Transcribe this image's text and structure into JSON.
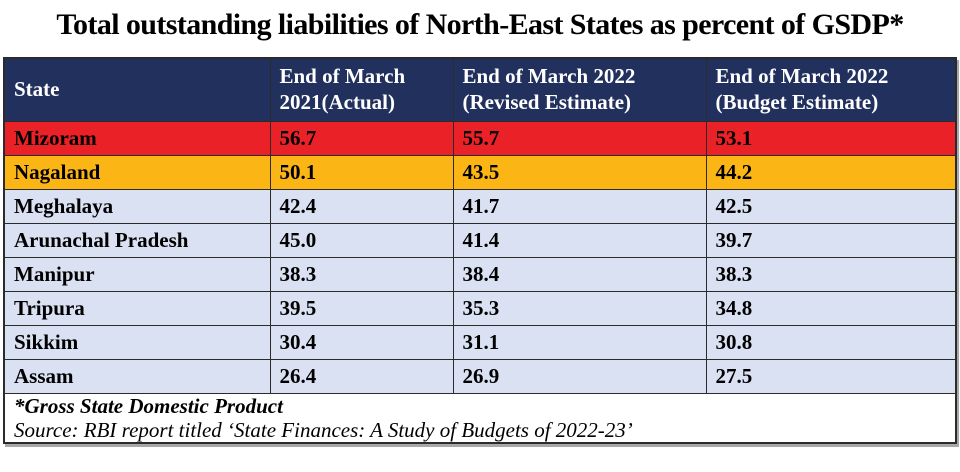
{
  "title": "Total outstanding liabilities of North-East States as percent of GSDP*",
  "colors": {
    "header_bg": "#22305e",
    "mizoram_row_bg": "#ea2127",
    "nagaland_row_bg": "#fbb615",
    "default_row_bg": "#d9e1f2",
    "title_text": "#000000",
    "header_text": "#ffffff"
  },
  "table": {
    "headers": [
      "State",
      "End of March 2021(Actual)",
      "End of March 2022 (Revised Estimate)",
      "End of March 2022 (Budget Estimate)"
    ],
    "rows": [
      {
        "state": "Mizoram",
        "values": [
          "56.7",
          "55.7",
          "53.1"
        ]
      },
      {
        "state": "Nagaland",
        "values": [
          "50.1",
          "43.5",
          "44.2"
        ]
      },
      {
        "state": "Meghalaya",
        "values": [
          "42.4",
          "41.7",
          "42.5"
        ]
      },
      {
        "state": "Arunachal Pradesh",
        "values": [
          "45.0",
          "41.4",
          "39.7"
        ]
      },
      {
        "state": "Manipur",
        "values": [
          "38.3",
          "38.4",
          "38.3"
        ]
      },
      {
        "state": "Tripura",
        "values": [
          "39.5",
          "35.3",
          "34.8"
        ]
      },
      {
        "state": "Sikkim",
        "values": [
          "30.4",
          "31.1",
          "30.8"
        ]
      },
      {
        "state": "Assam",
        "values": [
          "26.4",
          "26.9",
          "27.5"
        ]
      }
    ],
    "footnote": "*Gross State Domestic Product",
    "source": "Source: RBI report titled ‘State Finances: A Study of Budgets of 2022-23’"
  },
  "chart_data": {
    "type": "table",
    "title": "Total outstanding liabilities of North-East States as percent of GSDP*",
    "columns": [
      "State",
      "End of March 2021(Actual)",
      "End of March 2022 (Revised Estimate)",
      "End of March 2022 (Budget Estimate)"
    ],
    "rows": [
      [
        "Mizoram",
        56.7,
        55.7,
        53.1
      ],
      [
        "Nagaland",
        50.1,
        43.5,
        44.2
      ],
      [
        "Meghalaya",
        42.4,
        41.7,
        42.5
      ],
      [
        "Arunachal Pradesh",
        45.0,
        41.4,
        39.7
      ],
      [
        "Manipur",
        38.3,
        38.4,
        38.3
      ],
      [
        "Tripura",
        39.5,
        35.3,
        34.8
      ],
      [
        "Sikkim",
        30.4,
        31.1,
        30.8
      ],
      [
        "Assam",
        26.4,
        26.9,
        27.5
      ]
    ],
    "units": "percent of GSDP",
    "footnote": "*Gross State Domestic Product",
    "source": "Source: RBI report titled ‘State Finances: A Study of Budgets of 2022-23’"
  }
}
